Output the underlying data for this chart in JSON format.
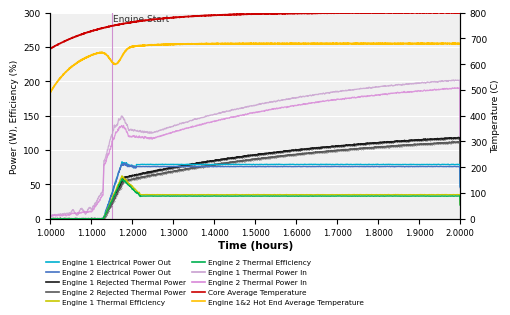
{
  "xlim": [
    1.0,
    2.0
  ],
  "ylim_left": [
    0,
    300
  ],
  "ylim_right": [
    0,
    800
  ],
  "xticks": [
    1.0,
    1.1,
    1.2,
    1.3,
    1.4,
    1.5,
    1.6,
    1.7,
    1.8,
    1.9,
    2.0
  ],
  "xtick_labels": [
    "1.0000",
    "1.1000",
    "1.2000",
    "1.3000",
    "1.4000",
    "1.5000",
    "1.6000",
    "1.7000",
    "1.8000",
    "1.9000",
    "2.0000"
  ],
  "yticks_left": [
    0,
    50,
    100,
    150,
    200,
    250,
    300
  ],
  "yticks_right": [
    0,
    100,
    200,
    300,
    400,
    500,
    600,
    700,
    800
  ],
  "xlabel": "Time (hours)",
  "ylabel_left": "Power (W), Efficiency (%)",
  "ylabel_right": "Temperature (C)",
  "engine_start_x": 1.15,
  "engine_start_label": "Engine Start",
  "bg_color": "#f0f0f0",
  "grid_color": "#ffffff",
  "colors": {
    "e1_elec": "#00b0d0",
    "e2_elec": "#4472c4",
    "e1_rejected": "#1a1a1a",
    "e2_rejected": "#595959",
    "e1_eff": "#c8c800",
    "e2_eff": "#00b050",
    "e1_thermal_in": "#c8a0d0",
    "e2_thermal_in": "#d888d8",
    "core_temp": "#cc0000",
    "hot_end": "#ffc000",
    "engine_start_line": "#d090d0"
  },
  "legend_entries": [
    [
      "Engine 1 Electrical Power Out",
      "#00b0d0"
    ],
    [
      "Engine 2 Electrical Power Out",
      "#4472c4"
    ],
    [
      "Engine 1 Rejected Thermal Power",
      "#1a1a1a"
    ],
    [
      "Engine 2 Rejected Thermal Power",
      "#595959"
    ],
    [
      "Engine 1 Thermal Efficiency",
      "#c8c800"
    ],
    [
      "Engine 2 Thermal Efficiency",
      "#00b050"
    ],
    [
      "Engine 1 Thermal Power In",
      "#c8a0d0"
    ],
    [
      "Engine 2 Thermal Power In",
      "#d888d8"
    ],
    [
      "Core Average Temperature",
      "#cc0000"
    ],
    [
      "Engine 1&2 Hot End Average Temperature",
      "#ffc000"
    ]
  ]
}
